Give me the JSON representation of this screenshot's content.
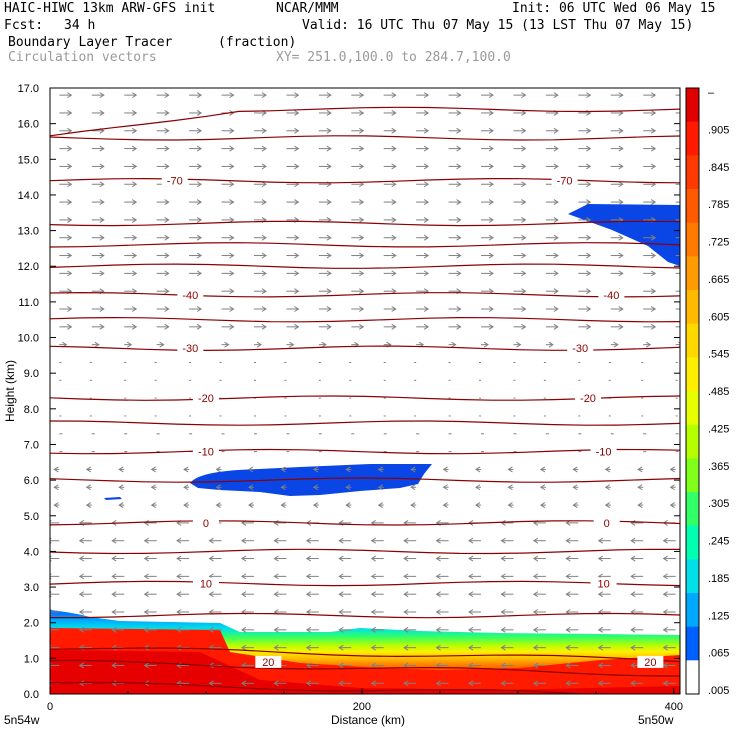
{
  "header": {
    "model": "HAIC-HIWC 13km ARW-GFS init",
    "org": "NCAR/MMM",
    "init": "Init: 06 UTC Wed 06 May 15",
    "fcst_label": "Fcst:",
    "fcst_value": "34 h",
    "valid": "Valid: 16 UTC Thu 07 May 15 (13 LST Thu 07 May 15)",
    "field": "Boundary Layer Tracer",
    "units": "(fraction)",
    "vectors": "Circulation vectors",
    "xy": "XY= 251.0,100.0 to 284.7,100.0"
  },
  "chart_data": {
    "type": "cross-section",
    "title": "Boundary Layer Tracer",
    "ylabel": "Height (km)",
    "xlabel": "Distance (km)",
    "x_ticks": [
      0,
      200,
      400
    ],
    "xlim": [
      0,
      404
    ],
    "y_ticks": [
      "0.0",
      "1.0",
      "2.0",
      "3.0",
      "4.0",
      "5.0",
      "6.0",
      "7.0",
      "8.0",
      "9.0",
      "10.0",
      "11.0",
      "12.0",
      "13.0",
      "14.0",
      "15.0",
      "16.0",
      "17.0"
    ],
    "ylim": [
      0,
      17
    ],
    "x_end_labels": [
      "5n54w",
      "5n50w"
    ],
    "colorbar": {
      "labels": [
        "–",
        ".905",
        ".845",
        ".785",
        ".725",
        ".665",
        ".605",
        ".545",
        ".485",
        ".425",
        ".365",
        ".305",
        ".245",
        ".185",
        ".125",
        ".065",
        ".005"
      ],
      "colors": [
        "#e00000",
        "#ff1a00",
        "#ff3a00",
        "#ff5a00",
        "#ff7a00",
        "#ff9a00",
        "#ffba00",
        "#ffd800",
        "#ffee00",
        "#e6ff00",
        "#b6ff00",
        "#80ff1a",
        "#33ff66",
        "#00ffb0",
        "#00e0e6",
        "#00a8ff",
        "#0060ff",
        "#ffffff"
      ]
    },
    "temperature_contours": [
      {
        "label": "-70",
        "z": 14.4
      },
      {
        "label": "-40",
        "z": 11.2
      },
      {
        "label": "-30",
        "z": 9.7
      },
      {
        "label": "-20",
        "z": 8.3
      },
      {
        "label": "-10",
        "z": 6.8
      },
      {
        "label": "0",
        "z": 4.8
      },
      {
        "label": "10",
        "z": 3.1
      },
      {
        "label": "20",
        "z": 0.9
      }
    ],
    "temperature_contour_labels": [
      {
        "label": "-70",
        "x": 80,
        "z": 14.4
      },
      {
        "label": "-70",
        "x": 330,
        "z": 14.4
      },
      {
        "label": "-40",
        "x": 90,
        "z": 11.2
      },
      {
        "label": "-40",
        "x": 360,
        "z": 11.2
      },
      {
        "label": "-30",
        "x": 90,
        "z": 9.7
      },
      {
        "label": "-30",
        "x": 340,
        "z": 9.7
      },
      {
        "label": "-20",
        "x": 100,
        "z": 8.3
      },
      {
        "label": "-20",
        "x": 345,
        "z": 8.3
      },
      {
        "label": "-10",
        "x": 100,
        "z": 6.8
      },
      {
        "label": "-10",
        "x": 355,
        "z": 6.8
      },
      {
        "label": "0",
        "x": 100,
        "z": 4.8
      },
      {
        "label": "0",
        "x": 357,
        "z": 4.8
      },
      {
        "label": "10",
        "x": 100,
        "z": 3.1
      },
      {
        "label": "10",
        "x": 355,
        "z": 3.1
      },
      {
        "label": "20",
        "x": 140,
        "z": 0.9
      },
      {
        "label": "20",
        "x": 385,
        "z": 0.9
      }
    ]
  }
}
